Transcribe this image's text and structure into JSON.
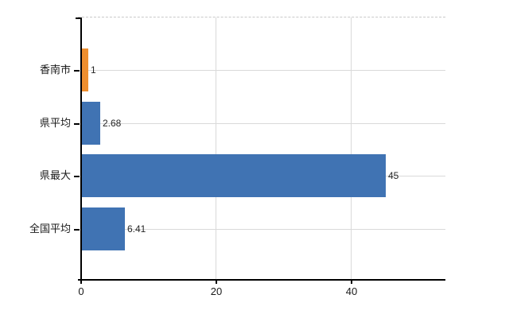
{
  "chart_data": {
    "type": "bar",
    "orientation": "horizontal",
    "categories": [
      "香南市",
      "県平均",
      "県最大",
      "全国平均"
    ],
    "values": [
      1,
      2.68,
      45,
      6.41
    ],
    "value_labels": [
      "1",
      "2.68",
      "45",
      "6.41"
    ],
    "bar_colors": [
      "#EE8E2F",
      "#4073B3",
      "#4073B3",
      "#4073B3"
    ],
    "series_note": "single series; first row highlighted orange, others blue",
    "title": "",
    "xlabel": "",
    "ylabel": "",
    "x_ticks": [
      0,
      20,
      40
    ],
    "x_tick_labels": [
      "0",
      "20",
      "40"
    ],
    "xlim": [
      0,
      54
    ],
    "grid": true,
    "legend": false
  },
  "colors": {
    "bar_orange": "#EE8E2F",
    "bar_blue": "#4073B3",
    "grid": "#D9D9D9",
    "top_border": "#C9C9C9",
    "axis": "#000000",
    "text": "#1A1A1A",
    "value_text": "#262626",
    "background": "#FFFFFF"
  }
}
